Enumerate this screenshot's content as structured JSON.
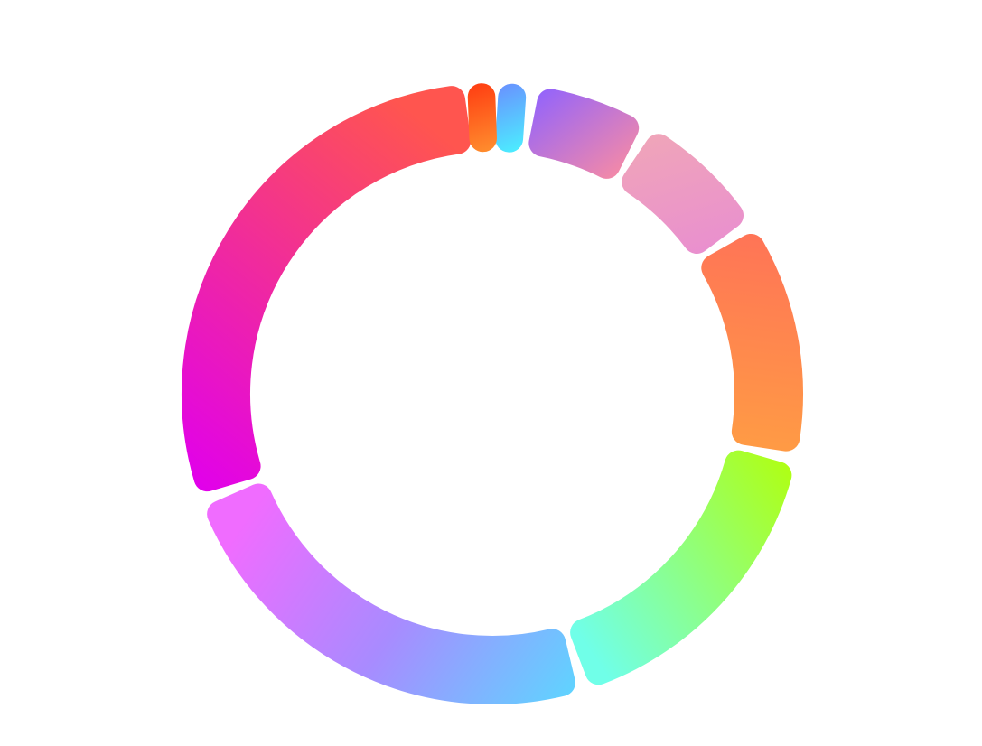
{
  "chart_data": {
    "type": "pie",
    "variant": "donut",
    "slices": [
      {
        "value": 2.0,
        "gradient": [
          "#6b8cff",
          "#4af3ff"
        ]
      },
      {
        "value": 6.0,
        "gradient": [
          "#8f62ff",
          "#f58aa6"
        ]
      },
      {
        "value": 7.0,
        "gradient": [
          "#f0a6b8",
          "#e98fcf"
        ]
      },
      {
        "value": 12.0,
        "gradient": [
          "#ff7357",
          "#ff9a45"
        ]
      },
      {
        "value": 16.0,
        "gradient": [
          "#b0ff12",
          "#70ffe8"
        ]
      },
      {
        "value": 23.0,
        "gradient": [
          "#60d3ff",
          "#a88bff",
          "#f06cff"
        ]
      },
      {
        "value": 28.0,
        "gradient": [
          "#e100eb",
          "#ff554f"
        ]
      },
      {
        "value": 1.1,
        "gradient": [
          "#ff3d12",
          "#ff8e2e"
        ]
      }
    ]
  }
}
